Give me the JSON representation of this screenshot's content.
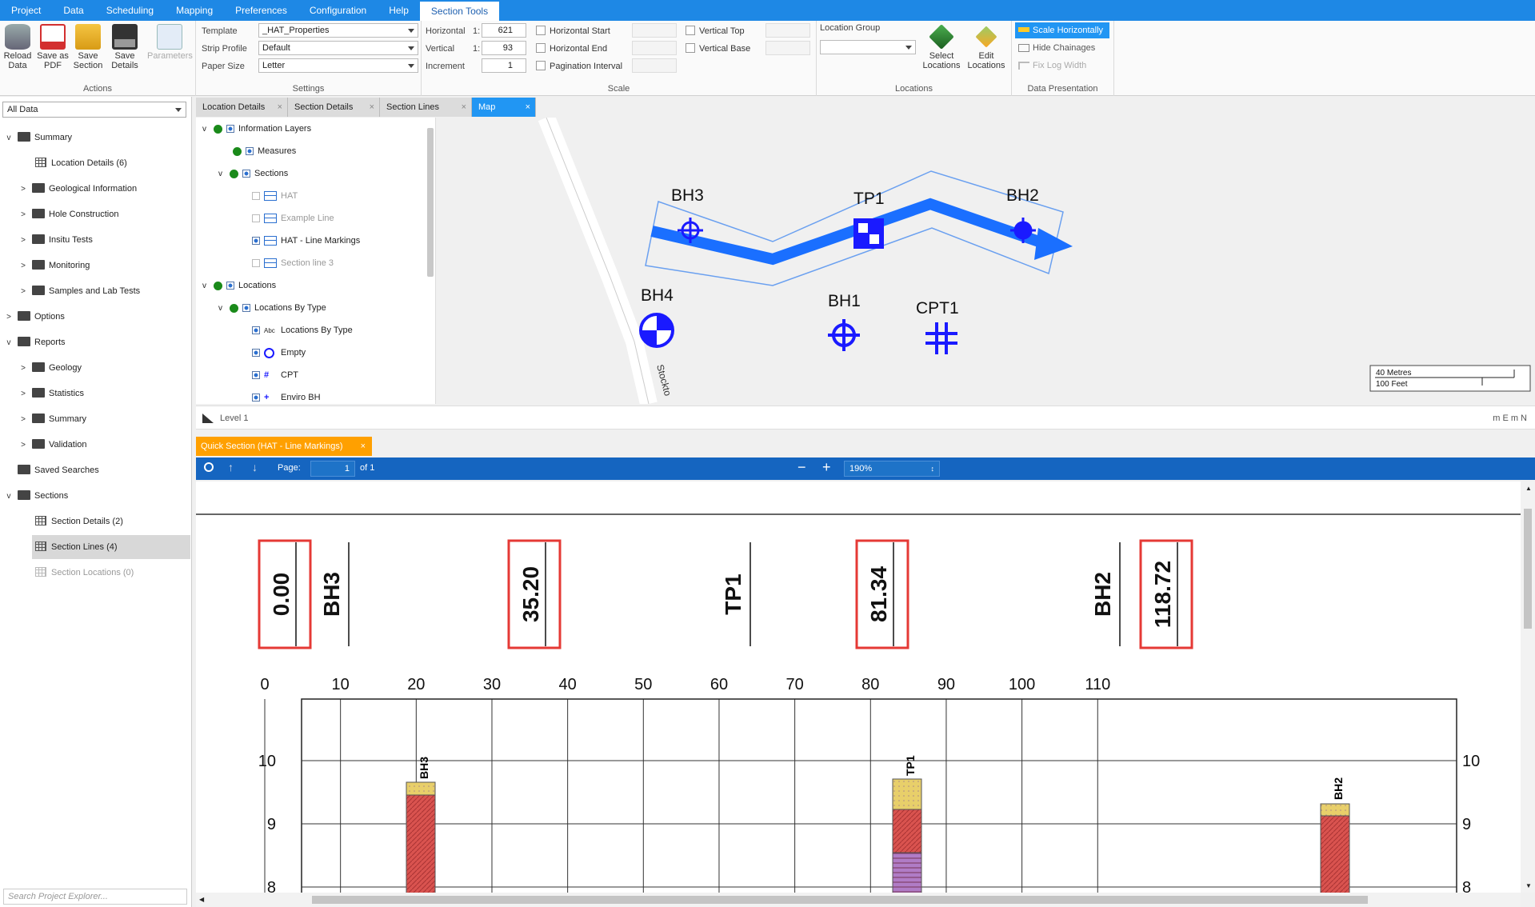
{
  "menu": {
    "items": [
      "Project",
      "Data",
      "Scheduling",
      "Mapping",
      "Preferences",
      "Configuration",
      "Help",
      "Section Tools"
    ],
    "active": "Section Tools"
  },
  "ribbon": {
    "actions": {
      "label": "Actions",
      "reload": "Reload Data",
      "save_pdf": "Save as PDF",
      "save_section": "Save Section",
      "save_details": "Save Details",
      "parameters": "Parameters"
    },
    "settings": {
      "label": "Settings",
      "template_label": "Template",
      "template_value": "_HAT_Properties",
      "strip_label": "Strip Profile",
      "strip_value": "Default",
      "paper_label": "Paper Size",
      "paper_value": "Letter"
    },
    "scale": {
      "label": "Scale",
      "horizontal_label": "Horizontal",
      "horizontal_ratio": "1:",
      "horizontal_value": "621",
      "vertical_label": "Vertical",
      "vertical_ratio": "1:",
      "vertical_value": "93",
      "increment_label": "Increment",
      "increment_value": "1",
      "hstart": "Horizontal Start",
      "hend": "Horizontal End",
      "pagination": "Pagination Interval",
      "vtop": "Vertical Top",
      "vbase": "Vertical Base"
    },
    "locations": {
      "label": "Locations",
      "group_label": "Location Group",
      "select": "Select Locations",
      "edit": "Edit Locations"
    },
    "presentation": {
      "label": "Data Presentation",
      "scale_h": "Scale Horizontally",
      "hide_ch": "Hide Chainages",
      "fix_log": "Fix Log Width"
    }
  },
  "explorer": {
    "filter": "All Data",
    "search_placeholder": "Search Project Explorer...",
    "tree": [
      "Summary",
      "Location Details (6)",
      "Geological Information",
      "Hole Construction",
      "Insitu Tests",
      "Monitoring",
      "Samples and Lab Tests",
      "Options",
      "Reports",
      "Geology",
      "Statistics",
      "Summary",
      "Validation",
      "Saved Searches",
      "Sections",
      "Section Details (2)",
      "Section Lines (4)",
      "Section Locations (0)"
    ]
  },
  "doc_tabs": [
    "Location Details",
    "Section Details",
    "Section Lines",
    "Map"
  ],
  "layers": {
    "items": [
      "Information Layers",
      "Measures",
      "Sections",
      "HAT",
      "Example Line",
      "HAT - Line Markings",
      "Section line 3",
      "Locations",
      "Locations By Type",
      "Locations By Type",
      "Empty",
      "CPT",
      "Enviro BH"
    ],
    "abc": "Abc"
  },
  "map": {
    "labels": [
      "BH3",
      "TP1",
      "BH2",
      "BH4",
      "BH1",
      "CPT1"
    ],
    "road": "Stockto",
    "scale_m": "40 Metres",
    "scale_ft": "100 Feet"
  },
  "level": {
    "label": "Level 1",
    "coords": "m E m N"
  },
  "quick_section": {
    "tab": "Quick Section (HAT - Line Markings)"
  },
  "pdf": {
    "page_label": "Page:",
    "page": "1",
    "of": "of 1",
    "zoom": "190%"
  },
  "section": {
    "chainages": [
      "0.00",
      "35.20",
      "81.34",
      "118.72"
    ],
    "hole_labels": [
      "BH3",
      "TP1",
      "BH2"
    ],
    "x_ticks": [
      "0",
      "10",
      "20",
      "30",
      "40",
      "50",
      "60",
      "70",
      "80",
      "90",
      "100",
      "110"
    ],
    "y_ticks": [
      "10",
      "9",
      "8"
    ]
  },
  "colors": {
    "accent": "#1e88e5",
    "map_blue": "#1a1aff",
    "highlight_red": "#e53935",
    "sand": "#e8cf6a",
    "clay": "#d9534f",
    "peat": "#b07cc6"
  }
}
